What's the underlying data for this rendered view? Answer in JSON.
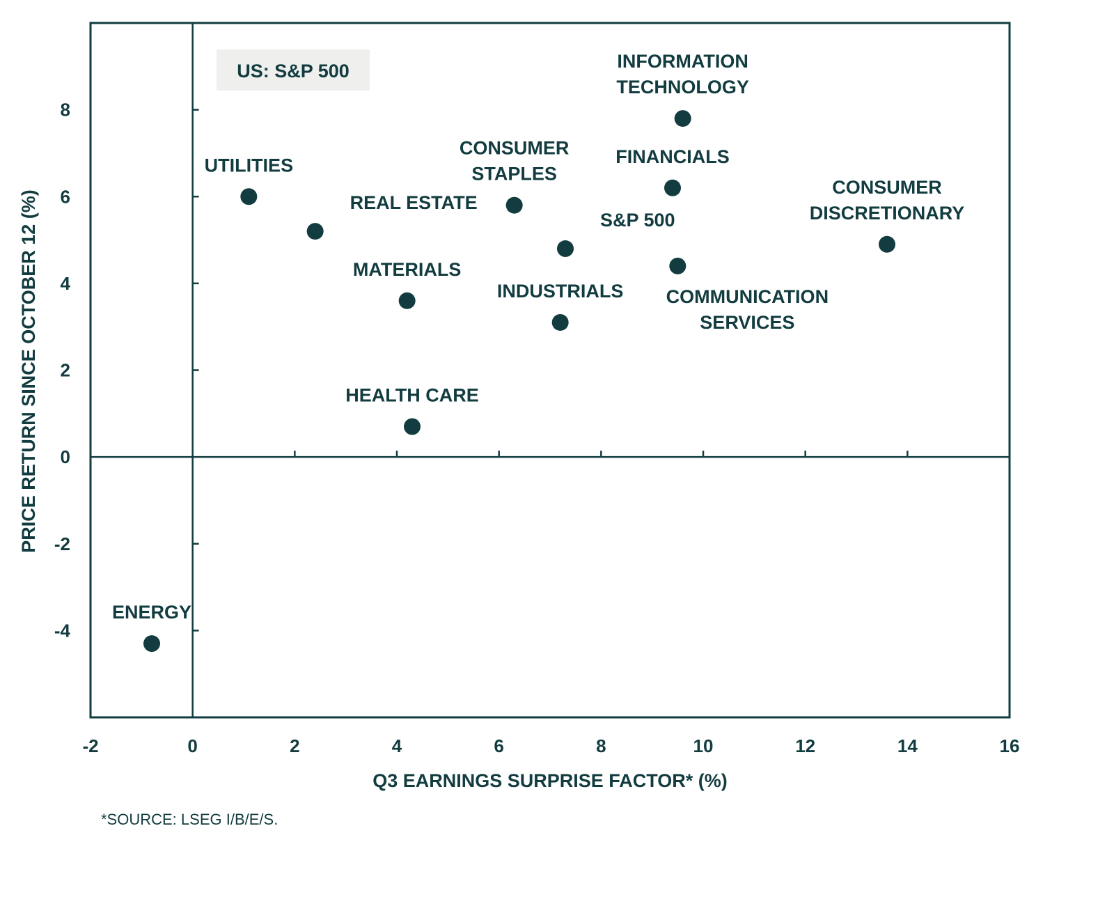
{
  "chart_data": {
    "type": "scatter",
    "title": "",
    "inset_label": "US: S&P 500",
    "xlabel": "Q3 EARNINGS SURPRISE FACTOR* (%)",
    "ylabel": "PRICE RETURN SINCE OCTOBER 12 (%)",
    "xlim": [
      -2,
      16
    ],
    "ylim": [
      -6,
      10
    ],
    "x_ticks": [
      -2,
      0,
      2,
      4,
      6,
      8,
      10,
      12,
      14,
      16
    ],
    "y_ticks": [
      -4,
      -2,
      0,
      2,
      4,
      6,
      8
    ],
    "grid": false,
    "legend": "none",
    "marker_color": "#123c3f",
    "footnote": "*SOURCE: LSEG I/B/E/S.",
    "points": [
      {
        "label": [
          "UTILITIES"
        ],
        "x": 1.1,
        "y": 6.0,
        "label_pos": "above"
      },
      {
        "label": [
          "REAL ESTATE"
        ],
        "x": 2.4,
        "y": 5.2,
        "label_pos": "above-right"
      },
      {
        "label": [
          "MATERIALS"
        ],
        "x": 4.2,
        "y": 3.6,
        "label_pos": "above"
      },
      {
        "label": [
          "HEALTH CARE"
        ],
        "x": 4.3,
        "y": 0.7,
        "label_pos": "above"
      },
      {
        "label": [
          "CONSUMER",
          "STAPLES"
        ],
        "x": 6.3,
        "y": 5.8,
        "label_pos": "above"
      },
      {
        "label": [
          "S&P 500"
        ],
        "x": 7.3,
        "y": 4.8,
        "label_pos": "above-right"
      },
      {
        "label": [
          "INDUSTRIALS"
        ],
        "x": 7.2,
        "y": 3.1,
        "label_pos": "above"
      },
      {
        "label": [
          "INFORMATION",
          "TECHNOLOGY"
        ],
        "x": 9.6,
        "y": 7.8,
        "label_pos": "above"
      },
      {
        "label": [
          "FINANCIALS"
        ],
        "x": 9.4,
        "y": 6.2,
        "label_pos": "above"
      },
      {
        "label": [
          "COMMUNICATION",
          "SERVICES"
        ],
        "x": 9.5,
        "y": 4.4,
        "label_pos": "below"
      },
      {
        "label": [
          "CONSUMER",
          "DISCRETIONARY"
        ],
        "x": 13.6,
        "y": 4.9,
        "label_pos": "above"
      },
      {
        "label": [
          "ENERGY"
        ],
        "x": -0.8,
        "y": -4.3,
        "label_pos": "above"
      }
    ]
  }
}
